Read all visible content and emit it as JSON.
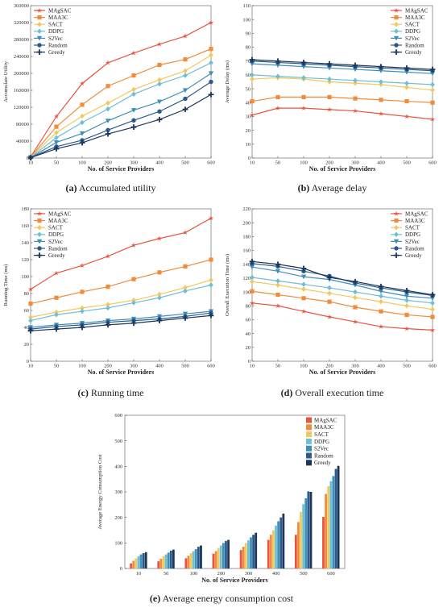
{
  "colors": [
    "#e8543f",
    "#f08c3c",
    "#f3c85c",
    "#6dbfd6",
    "#3e8fb8",
    "#2a5a8c",
    "#1c3558"
  ],
  "captions": [
    {
      "tag": "(a)",
      "text": "Accumulated utility"
    },
    {
      "tag": "(b)",
      "text": "Average delay"
    },
    {
      "tag": "(c)",
      "text": "Running time"
    },
    {
      "tag": "(d)",
      "text": "Overall execution time"
    },
    {
      "tag": "(e)",
      "text": "Average energy consumption cost"
    }
  ],
  "chart_data": [
    {
      "type": "line",
      "xlabel": "No. of Service Providers",
      "ylabel": "Accumulate Utility",
      "x": [
        10,
        50,
        100,
        200,
        300,
        400,
        500,
        600
      ],
      "xticks": [
        "10",
        "50",
        "100",
        "200",
        "300",
        "400",
        "500",
        "600"
      ],
      "ylim": [
        0,
        360000
      ],
      "yticks": [
        "0",
        "40000",
        "80000",
        "120000",
        "160000",
        "200000",
        "240000",
        "280000",
        "320000",
        "360000"
      ],
      "legend_position": "top-left",
      "series": [
        {
          "name": "MAgSAC",
          "marker": "star",
          "values": [
            3000,
            98000,
            176000,
            225000,
            248000,
            269000,
            288000,
            320000
          ]
        },
        {
          "name": "MAA3C",
          "marker": "square",
          "values": [
            2000,
            74000,
            126000,
            170000,
            195000,
            220000,
            233000,
            258000
          ]
        },
        {
          "name": "SACT",
          "marker": "diamond",
          "values": [
            2000,
            60000,
            99000,
            130000,
            162000,
            185000,
            206000,
            243000
          ]
        },
        {
          "name": "DDPG",
          "marker": "diamond",
          "values": [
            1500,
            48000,
            84000,
            116000,
            151000,
            175000,
            195000,
            225000
          ]
        },
        {
          "name": "S2Vec",
          "marker": "triangle-down",
          "values": [
            1000,
            37000,
            58000,
            88000,
            113000,
            133000,
            160000,
            200000
          ]
        },
        {
          "name": "Random",
          "marker": "circle",
          "values": [
            1000,
            27000,
            42000,
            66000,
            89000,
            110000,
            140000,
            180000
          ]
        },
        {
          "name": "Greedy",
          "marker": "plus",
          "values": [
            800,
            22000,
            36000,
            57000,
            73000,
            91000,
            115000,
            150000
          ]
        }
      ]
    },
    {
      "type": "line",
      "xlabel": "No. of Service Providers",
      "ylabel": "Average Delay (ms)",
      "x": [
        10,
        50,
        100,
        200,
        300,
        400,
        500,
        600
      ],
      "xticks": [
        "10",
        "50",
        "100",
        "200",
        "300",
        "400",
        "500",
        "600"
      ],
      "ylim": [
        0,
        110
      ],
      "yticks": [
        "0",
        "10",
        "20",
        "30",
        "40",
        "50",
        "60",
        "70",
        "80",
        "90",
        "100",
        "110"
      ],
      "legend_position": "top-right",
      "series": [
        {
          "name": "MAgSAC",
          "marker": "star",
          "values": [
            31,
            36,
            36,
            35,
            34,
            32,
            30,
            28
          ]
        },
        {
          "name": "MAA3C",
          "marker": "square",
          "values": [
            41,
            44,
            44,
            44,
            43,
            42,
            41,
            40
          ]
        },
        {
          "name": "SACT",
          "marker": "diamond",
          "values": [
            57,
            58,
            57,
            55,
            54,
            53,
            51,
            49
          ]
        },
        {
          "name": "DDPG",
          "marker": "diamond",
          "values": [
            60,
            59,
            58,
            57,
            56,
            55,
            54,
            53
          ]
        },
        {
          "name": "S2Vec",
          "marker": "triangle-down",
          "values": [
            68,
            67,
            66,
            65,
            64,
            63,
            62,
            61
          ]
        },
        {
          "name": "Random",
          "marker": "circle",
          "values": [
            70,
            69,
            68,
            67,
            66,
            65,
            64,
            63
          ]
        },
        {
          "name": "Greedy",
          "marker": "plus",
          "values": [
            71,
            70,
            69,
            68,
            67,
            66,
            65,
            64
          ]
        }
      ]
    },
    {
      "type": "line",
      "xlabel": "No. of Service Providers",
      "ylabel": "Running Time (ms)",
      "x": [
        10,
        50,
        100,
        200,
        300,
        400,
        500,
        600
      ],
      "xticks": [
        "10",
        "50",
        "100",
        "200",
        "300",
        "400",
        "500",
        "600"
      ],
      "ylim": [
        0,
        180
      ],
      "yticks": [
        "0",
        "20",
        "40",
        "60",
        "80",
        "100",
        "120",
        "140",
        "160",
        "180"
      ],
      "legend_position": "top-left",
      "series": [
        {
          "name": "MAgSAC",
          "marker": "star",
          "values": [
            85,
            104,
            113,
            124,
            137,
            145,
            152,
            169
          ]
        },
        {
          "name": "MAA3C",
          "marker": "square",
          "values": [
            68,
            75,
            82,
            88,
            97,
            105,
            112,
            120
          ]
        },
        {
          "name": "SACT",
          "marker": "diamond",
          "values": [
            52,
            58,
            63,
            67,
            72,
            79,
            87,
            96
          ]
        },
        {
          "name": "DDPG",
          "marker": "diamond",
          "values": [
            48,
            55,
            59,
            63,
            69,
            75,
            83,
            90
          ]
        },
        {
          "name": "S2Vec",
          "marker": "triangle-down",
          "values": [
            40,
            43,
            45,
            48,
            50,
            53,
            56,
            59
          ]
        },
        {
          "name": "Random",
          "marker": "circle",
          "values": [
            38,
            41,
            43,
            46,
            48,
            50,
            53,
            57
          ]
        },
        {
          "name": "Greedy",
          "marker": "plus",
          "values": [
            36,
            38,
            40,
            43,
            45,
            48,
            51,
            54
          ]
        }
      ]
    },
    {
      "type": "line",
      "xlabel": "No. of Service Providers",
      "ylabel": "Overall Execution Time (ms)",
      "x": [
        10,
        50,
        100,
        200,
        300,
        400,
        500,
        600
      ],
      "xticks": [
        "10",
        "50",
        "100",
        "200",
        "300",
        "400",
        "500",
        "600"
      ],
      "ylim": [
        0,
        220
      ],
      "yticks": [
        "0",
        "20",
        "40",
        "60",
        "80",
        "100",
        "120",
        "140",
        "160",
        "180",
        "200",
        "220"
      ],
      "legend_position": "top-right",
      "series": [
        {
          "name": "MAgSAC",
          "marker": "star",
          "values": [
            84,
            80,
            72,
            64,
            57,
            50,
            47,
            45
          ]
        },
        {
          "name": "MAA3C",
          "marker": "square",
          "values": [
            101,
            96,
            91,
            86,
            78,
            72,
            67,
            64
          ]
        },
        {
          "name": "SACT",
          "marker": "diamond",
          "values": [
            115,
            110,
            104,
            98,
            92,
            86,
            80,
            75
          ]
        },
        {
          "name": "DDPG",
          "marker": "diamond",
          "values": [
            121,
            116,
            111,
            106,
            100,
            94,
            88,
            84
          ]
        },
        {
          "name": "S2Vec",
          "marker": "triangle-down",
          "values": [
            136,
            130,
            122,
            118,
            110,
            101,
            94,
            91
          ]
        },
        {
          "name": "Random",
          "marker": "circle",
          "values": [
            141,
            137,
            130,
            123,
            113,
            106,
            100,
            95
          ]
        },
        {
          "name": "Greedy",
          "marker": "plus",
          "values": [
            144,
            140,
            134,
            121,
            115,
            108,
            102,
            96
          ]
        }
      ]
    },
    {
      "type": "bar",
      "xlabel": "No. of Service Providers",
      "ylabel": "Average Energy Consumption Cost",
      "categories": [
        "10",
        "50",
        "100",
        "200",
        "300",
        "400",
        "500",
        "600"
      ],
      "ylim": [
        0,
        600
      ],
      "yticks": [
        "0",
        "100",
        "200",
        "300",
        "400",
        "500",
        "600"
      ],
      "legend_position": "top-right",
      "series": [
        {
          "name": "MAgSAC",
          "values": [
            20,
            28,
            40,
            58,
            72,
            112,
            132,
            202
          ]
        },
        {
          "name": "MAA3C",
          "values": [
            30,
            38,
            50,
            68,
            85,
            132,
            182,
            292
          ]
        },
        {
          "name": "SACT",
          "values": [
            40,
            48,
            60,
            80,
            100,
            150,
            222,
            322
          ]
        },
        {
          "name": "DDPG",
          "values": [
            48,
            55,
            68,
            90,
            110,
            168,
            252,
            342
          ]
        },
        {
          "name": "S2Vec",
          "values": [
            55,
            62,
            76,
            100,
            122,
            185,
            275,
            362
          ]
        },
        {
          "name": "Random",
          "values": [
            60,
            70,
            85,
            108,
            132,
            200,
            302,
            390
          ]
        },
        {
          "name": "Greedy",
          "values": [
            64,
            74,
            90,
            112,
            140,
            215,
            300,
            402
          ]
        }
      ]
    }
  ]
}
